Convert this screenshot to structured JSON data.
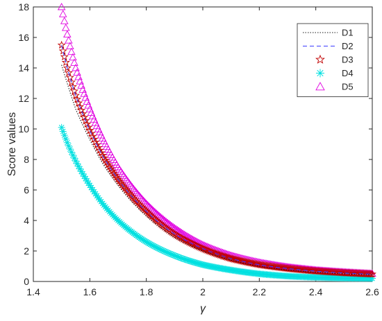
{
  "chart_data": {
    "type": "line",
    "title": "",
    "xlabel": "γ",
    "ylabel": "Score values",
    "xlim": [
      1.4,
      2.6
    ],
    "ylim": [
      0,
      18
    ],
    "xticks": [
      1.4,
      1.6,
      1.8,
      2,
      2.2,
      2.4,
      2.6
    ],
    "yticks": [
      0,
      2,
      4,
      6,
      8,
      10,
      12,
      14,
      16,
      18
    ],
    "grid": false,
    "legend_position": "top-right",
    "x": [
      1.5,
      1.52,
      1.55,
      1.6,
      1.65,
      1.7,
      1.8,
      1.9,
      2.0,
      2.1,
      2.2,
      2.3,
      2.4,
      2.5,
      2.6
    ],
    "series": [
      {
        "name": "D1",
        "style": "dotted",
        "marker": "none",
        "color": "#1a1a1a",
        "values": [
          14.2,
          13.0,
          11.3,
          9.3,
          7.6,
          6.3,
          4.3,
          2.9,
          2.0,
          1.4,
          1.0,
          0.75,
          0.6,
          0.5,
          0.43
        ]
      },
      {
        "name": "D2",
        "style": "dashed",
        "marker": "none",
        "color": "#3a3aff",
        "values": [
          15.5,
          14.0,
          12.2,
          9.9,
          8.1,
          6.7,
          4.6,
          3.1,
          2.15,
          1.5,
          1.1,
          0.85,
          0.68,
          0.56,
          0.48
        ]
      },
      {
        "name": "D3",
        "style": "none",
        "marker": "star",
        "color": "#c00000",
        "values": [
          15.5,
          14.0,
          12.2,
          9.9,
          8.1,
          6.7,
          4.6,
          3.1,
          2.15,
          1.5,
          1.1,
          0.85,
          0.68,
          0.56,
          0.48
        ]
      },
      {
        "name": "D4",
        "style": "none",
        "marker": "asterisk",
        "color": "#00e0e0",
        "values": [
          10.1,
          9.1,
          7.9,
          6.3,
          5.0,
          4.0,
          2.6,
          1.7,
          1.1,
          0.75,
          0.5,
          0.35,
          0.27,
          0.22,
          0.2
        ]
      },
      {
        "name": "D5",
        "style": "none",
        "marker": "triangle",
        "color": "#e000e0",
        "values": [
          18.0,
          16.2,
          14.0,
          11.3,
          9.2,
          7.5,
          5.1,
          3.5,
          2.4,
          1.7,
          1.25,
          0.95,
          0.75,
          0.62,
          0.52
        ]
      }
    ]
  }
}
